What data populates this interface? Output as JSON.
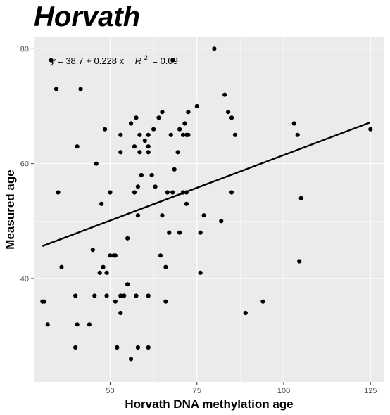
{
  "chart_data": {
    "type": "scatter",
    "title": "Horvath",
    "xlabel": "Horvath DNA methylation age",
    "ylabel": "Measured age",
    "xlim": [
      28,
      129
    ],
    "ylim": [
      22,
      82
    ],
    "xticks": [
      50,
      75,
      100,
      125
    ],
    "yticks": [
      40,
      60,
      80
    ],
    "grid": true,
    "background": "#ebebeb",
    "point_color": "#000000",
    "fit_line": {
      "intercept": 38.7,
      "slope": 0.228,
      "x_range": [
        30.5,
        124.8
      ]
    },
    "annotation": {
      "y_var": "y",
      "equation_rest": "= 38.7 + 0.228 x",
      "r2_base": "R",
      "r2_exp": "2",
      "r2_value": "= 0.09"
    },
    "points": [
      [
        30.5,
        36
      ],
      [
        31,
        36
      ],
      [
        32,
        32
      ],
      [
        33,
        78
      ],
      [
        34.5,
        73
      ],
      [
        35,
        55
      ],
      [
        36,
        42
      ],
      [
        40,
        28
      ],
      [
        40,
        37
      ],
      [
        40.5,
        32
      ],
      [
        40.5,
        63
      ],
      [
        41.5,
        73
      ],
      [
        44,
        32
      ],
      [
        45,
        45
      ],
      [
        45.5,
        37
      ],
      [
        46,
        60
      ],
      [
        47,
        41
      ],
      [
        47.5,
        53
      ],
      [
        48,
        42
      ],
      [
        48.5,
        66
      ],
      [
        49,
        41
      ],
      [
        49,
        37
      ],
      [
        50,
        55
      ],
      [
        50,
        44
      ],
      [
        51,
        44
      ],
      [
        51.5,
        36
      ],
      [
        51.5,
        44
      ],
      [
        52,
        28
      ],
      [
        53,
        62
      ],
      [
        53,
        65
      ],
      [
        53,
        37
      ],
      [
        53,
        34
      ],
      [
        54,
        37
      ],
      [
        55,
        47
      ],
      [
        55,
        39
      ],
      [
        56,
        26
      ],
      [
        56,
        67
      ],
      [
        57,
        55
      ],
      [
        57,
        63
      ],
      [
        57.5,
        37
      ],
      [
        57.5,
        68
      ],
      [
        58,
        28
      ],
      [
        58,
        51
      ],
      [
        58,
        56
      ],
      [
        58.5,
        62
      ],
      [
        58.5,
        65
      ],
      [
        59,
        58
      ],
      [
        60,
        64
      ],
      [
        61,
        37
      ],
      [
        61,
        28
      ],
      [
        61,
        65
      ],
      [
        61,
        62
      ],
      [
        61,
        63
      ],
      [
        62,
        58
      ],
      [
        62.5,
        66
      ],
      [
        63,
        56
      ],
      [
        64,
        68
      ],
      [
        64.5,
        44
      ],
      [
        65,
        69
      ],
      [
        65,
        51
      ],
      [
        66,
        42
      ],
      [
        66,
        36
      ],
      [
        66.5,
        55
      ],
      [
        67,
        48
      ],
      [
        67.5,
        65
      ],
      [
        68,
        78
      ],
      [
        68,
        55
      ],
      [
        68.5,
        59
      ],
      [
        69.5,
        62
      ],
      [
        70,
        66
      ],
      [
        70,
        48
      ],
      [
        71,
        65
      ],
      [
        71,
        55
      ],
      [
        71.5,
        67
      ],
      [
        72,
        55
      ],
      [
        72,
        53
      ],
      [
        72,
        65
      ],
      [
        72.5,
        65
      ],
      [
        72.5,
        69
      ],
      [
        75,
        70
      ],
      [
        76,
        41
      ],
      [
        76,
        48
      ],
      [
        77,
        51
      ],
      [
        80,
        80
      ],
      [
        82,
        50
      ],
      [
        83,
        72
      ],
      [
        84,
        69
      ],
      [
        85,
        68
      ],
      [
        85,
        55
      ],
      [
        86,
        65
      ],
      [
        89,
        34
      ],
      [
        94,
        36
      ],
      [
        103,
        67
      ],
      [
        104,
        65
      ],
      [
        104.5,
        43
      ],
      [
        105,
        54
      ],
      [
        125,
        66
      ]
    ]
  }
}
